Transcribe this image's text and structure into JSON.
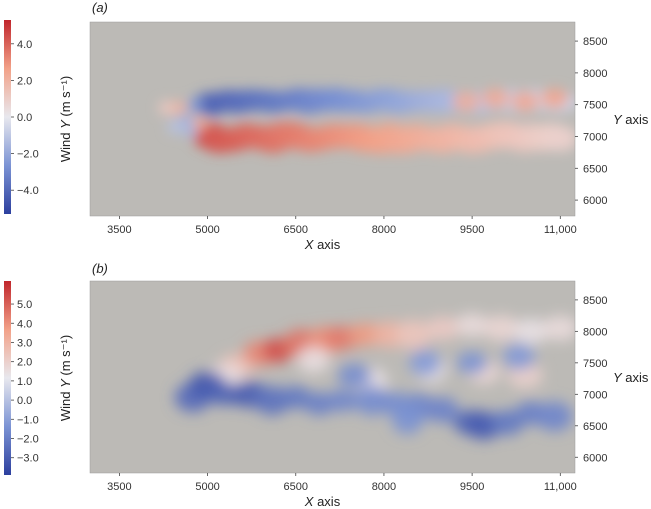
{
  "chart_data": [
    {
      "type": "heatmap",
      "panel_label": "(a)",
      "xlabel": "X axis",
      "ylabel": "Y axis",
      "colorbar_label": "Wind Y (m s⁻¹)",
      "x_ticks": [
        "3500",
        "5000",
        "6500",
        "8000",
        "9500",
        "11,000"
      ],
      "x_tick_values": [
        3500,
        5000,
        6500,
        8000,
        9500,
        11000
      ],
      "y_ticks": [
        "6000",
        "6500",
        "7000",
        "7500",
        "8000",
        "8500"
      ],
      "y_tick_values": [
        6000,
        6500,
        7000,
        7500,
        8000,
        8500
      ],
      "xlim": [
        3000,
        11250
      ],
      "ylim": [
        5750,
        8800
      ],
      "colorbar_ticks": [
        "4.0",
        "2.0",
        "0.0",
        "−2.0",
        "−4.0"
      ],
      "colorbar_tick_values": [
        4.0,
        2.0,
        0.0,
        -2.0,
        -4.0
      ],
      "clim": [
        -5.3,
        5.3
      ],
      "colormap": [
        "#2c3f9e",
        "#7b93d4",
        "#e8e8ee",
        "#f2a188",
        "#c0262c"
      ],
      "background_value": 0.0,
      "wake_features": [
        {
          "x0": 5000,
          "x1": 11000,
          "y": 7550,
          "value": -4.2,
          "note": "negative wind Y band above wake centreline"
        },
        {
          "x0": 5000,
          "x1": 11000,
          "y": 6980,
          "value": 4.3,
          "note": "positive wind Y band below wake centreline"
        }
      ]
    },
    {
      "type": "heatmap",
      "panel_label": "(b)",
      "xlabel": "X axis",
      "ylabel": "Y axis",
      "colorbar_label": "Wind Y (m s⁻¹)",
      "x_ticks": [
        "3500",
        "5000",
        "6500",
        "8000",
        "9500",
        "11,000"
      ],
      "x_tick_values": [
        3500,
        5000,
        6500,
        8000,
        9500,
        11000
      ],
      "y_ticks": [
        "6000",
        "6500",
        "7000",
        "7500",
        "8000",
        "8500"
      ],
      "y_tick_values": [
        6000,
        6500,
        7000,
        7500,
        8000,
        8500
      ],
      "xlim": [
        3000,
        11250
      ],
      "ylim": [
        5750,
        8800
      ],
      "colorbar_ticks": [
        "5.0",
        "4.0",
        "3.0",
        "2.0",
        "1.0",
        "0.0",
        "−1.0",
        "−2.0",
        "−3.0"
      ],
      "colorbar_tick_values": [
        5.0,
        4.0,
        3.0,
        2.0,
        1.0,
        0.0,
        -1.0,
        -2.0,
        -3.0
      ],
      "clim": [
        -3.9,
        6.2
      ],
      "colormap": [
        "#2c3f9e",
        "#7b93d4",
        "#e8e8ee",
        "#f2a188",
        "#c0262c"
      ],
      "background_value": 0.0,
      "wake_features": [
        {
          "x0": 5500,
          "x1": 11000,
          "y": 7900,
          "value": 5.0,
          "note": "positive eddies above wake"
        },
        {
          "x0": 4700,
          "x1": 11000,
          "y": 6900,
          "value": -3.0,
          "note": "negative eddies below wake"
        }
      ]
    }
  ]
}
